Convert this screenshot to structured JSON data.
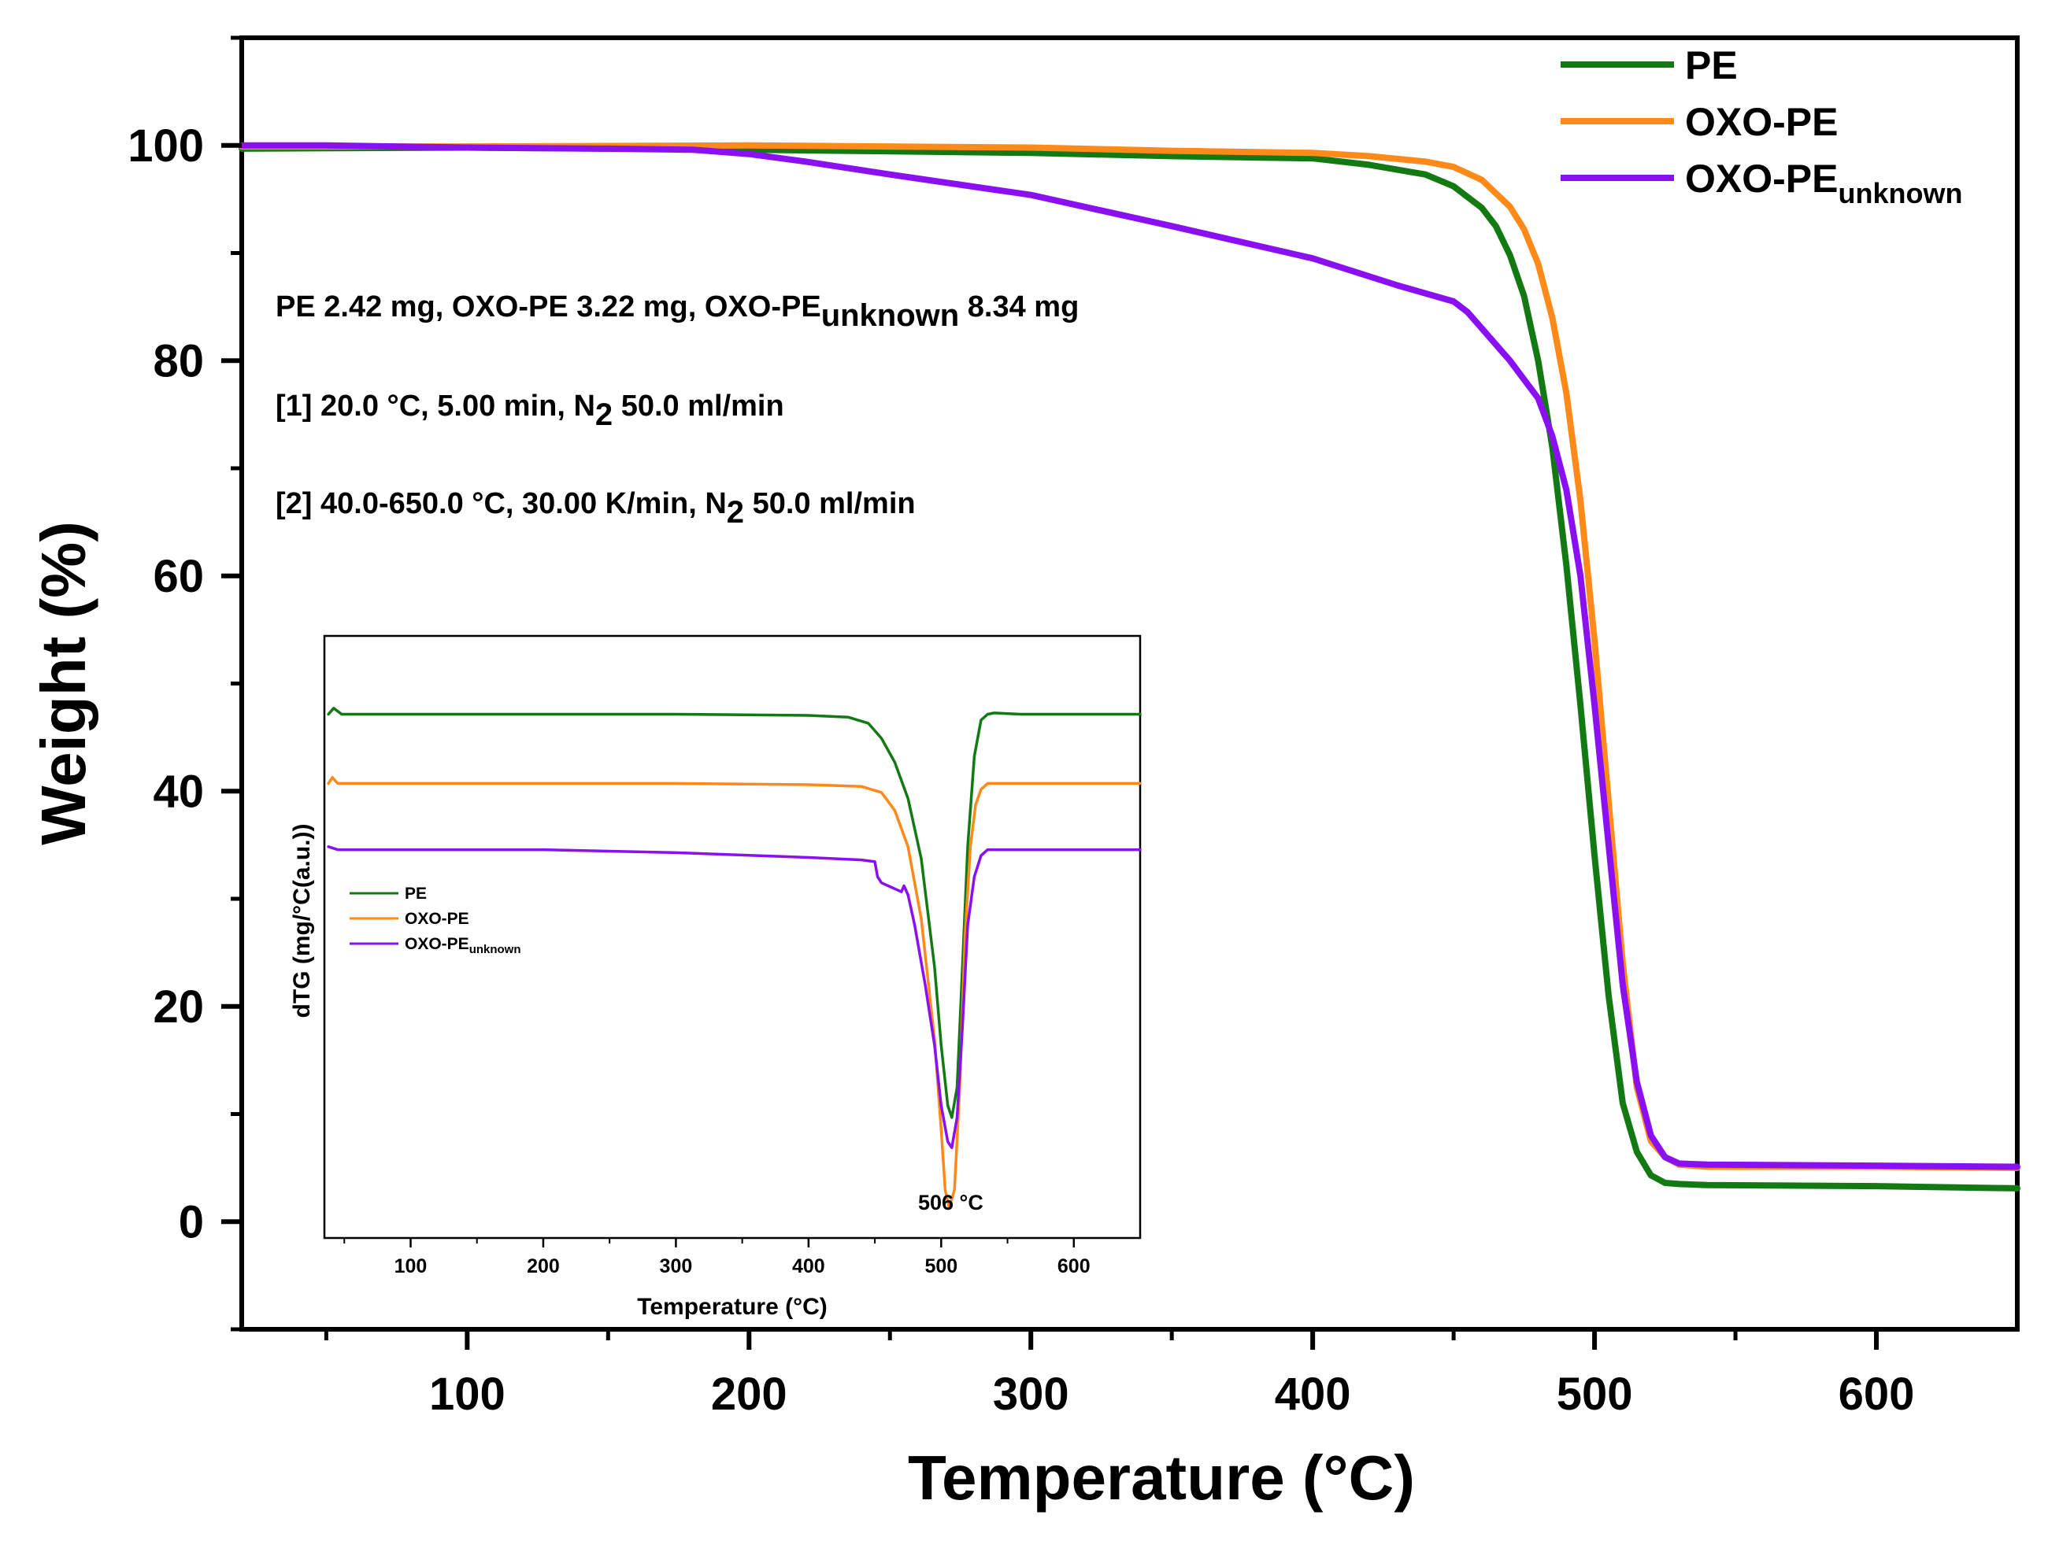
{
  "colors": {
    "PE": "#137a13",
    "OXO-PE": "#ff8a1a",
    "OXO-PE_unknown": "#8a10f2",
    "axis": "#000000"
  },
  "chart_data": [
    {
      "type": "line",
      "title": "",
      "xlabel": "Temperature (°C)",
      "ylabel": "Weight (%)",
      "xlim": [
        20,
        650
      ],
      "ylim": [
        -10,
        110
      ],
      "x_ticks": [
        100,
        200,
        300,
        400,
        500,
        600
      ],
      "x_tick_labels": [
        "100",
        "200",
        "300",
        "400",
        "500",
        "600"
      ],
      "y_ticks": [
        0,
        20,
        40,
        60,
        80,
        100
      ],
      "y_tick_labels": [
        "0",
        "20",
        "40",
        "60",
        "80",
        "100"
      ],
      "legend": {
        "position": "top-right",
        "entries": [
          {
            "base": "PE",
            "sub": ""
          },
          {
            "base": "OXO-PE",
            "sub": ""
          },
          {
            "base": "OXO-PE",
            "sub": "unknown"
          }
        ]
      },
      "annotations": [
        {
          "segments": [
            {
              "t": "PE 2.42 mg, OXO-PE 3.22 mg, OXO-PE"
            },
            {
              "t": "unknown",
              "sub": true
            },
            {
              "t": " 8.34 mg"
            }
          ]
        },
        {
          "segments": [
            {
              "t": "[1] 20.0 °C, 5.00 min, N"
            },
            {
              "t": "2",
              "sub": true
            },
            {
              "t": " 50.0 ml/min"
            }
          ]
        },
        {
          "segments": [
            {
              "t": "[2] 40.0-650.0 °C, 30.00 K/min, N"
            },
            {
              "t": "2",
              "sub": true
            },
            {
              "t": " 50.0 ml/min"
            }
          ]
        }
      ],
      "series": [
        {
          "name": "PE",
          "color_key": "PE",
          "x": [
            20,
            100,
            200,
            300,
            350,
            400,
            420,
            440,
            450,
            460,
            465,
            470,
            475,
            480,
            485,
            490,
            495,
            500,
            505,
            510,
            515,
            520,
            525,
            530,
            540,
            600,
            650
          ],
          "y": [
            99.7,
            99.8,
            99.6,
            99.3,
            99.0,
            98.8,
            98.2,
            97.3,
            96.2,
            94.2,
            92.5,
            89.8,
            86.0,
            80.0,
            72.0,
            61.0,
            48.0,
            34.0,
            21.0,
            11.0,
            6.5,
            4.3,
            3.6,
            3.5,
            3.4,
            3.3,
            3.1
          ]
        },
        {
          "name": "OXO-PE",
          "color_key": "OXO-PE",
          "x": [
            20,
            100,
            200,
            300,
            350,
            400,
            420,
            440,
            450,
            460,
            470,
            475,
            480,
            485,
            490,
            495,
            500,
            505,
            510,
            515,
            520,
            525,
            530,
            540,
            600,
            650
          ],
          "y": [
            99.9,
            99.9,
            100.0,
            99.8,
            99.5,
            99.3,
            99.0,
            98.5,
            98.0,
            96.8,
            94.3,
            92.2,
            89.0,
            84.0,
            77.0,
            67.0,
            54.0,
            39.0,
            24.0,
            12.5,
            7.5,
            6.0,
            5.3,
            5.1,
            5.1,
            5.0
          ]
        },
        {
          "name": "OXO-PE_unknown",
          "color_key": "OXO-PE_unknown",
          "x": [
            20,
            50,
            100,
            150,
            180,
            200,
            220,
            250,
            300,
            350,
            400,
            430,
            450,
            455,
            460,
            470,
            480,
            485,
            490,
            495,
            500,
            505,
            510,
            515,
            520,
            525,
            530,
            540,
            600,
            650
          ],
          "y": [
            100.0,
            100.0,
            99.8,
            99.7,
            99.6,
            99.2,
            98.5,
            97.3,
            95.4,
            92.5,
            89.5,
            87.0,
            85.5,
            84.5,
            83.0,
            80.0,
            76.5,
            73.0,
            68.0,
            60.0,
            48.0,
            35.0,
            22.0,
            13.0,
            8.0,
            6.0,
            5.4,
            5.3,
            5.2,
            5.1
          ]
        }
      ]
    },
    {
      "type": "line",
      "title": "",
      "xlabel": "Temperature (°C)",
      "ylabel": "dTG (mg/°C(a.u.))",
      "xlim": [
        35,
        650
      ],
      "ylim": [
        0,
        100
      ],
      "x_ticks": [
        100,
        200,
        300,
        400,
        500,
        600
      ],
      "x_tick_labels": [
        "100",
        "200",
        "300",
        "400",
        "500",
        "600"
      ],
      "peak_label": {
        "text": "506 °C",
        "x": 506
      },
      "legend": {
        "position": "middle-left",
        "entries": [
          {
            "base": "PE",
            "sub": ""
          },
          {
            "base": "OXO-PE",
            "sub": ""
          },
          {
            "base": "OXO-PE",
            "sub": "unknown"
          }
        ]
      },
      "series": [
        {
          "name": "PE",
          "color_key": "PE",
          "x": [
            38,
            42,
            48,
            100,
            200,
            300,
            400,
            430,
            445,
            455,
            465,
            475,
            485,
            495,
            500,
            505,
            508,
            512,
            516,
            520,
            525,
            530,
            535,
            540,
            560,
            650
          ],
          "y": [
            87.0,
            88.0,
            87.0,
            87.0,
            87.0,
            87.0,
            86.8,
            86.5,
            85.5,
            83.0,
            79.0,
            73.0,
            63.0,
            45.0,
            32.0,
            22.0,
            20.0,
            25.0,
            45.0,
            65.0,
            80.0,
            86.0,
            87.0,
            87.2,
            87.0,
            87.0
          ]
        },
        {
          "name": "OXO-PE",
          "color_key": "OXO-PE",
          "x": [
            38,
            41,
            45,
            100,
            200,
            300,
            400,
            440,
            455,
            465,
            475,
            485,
            495,
            500,
            503,
            506,
            510,
            514,
            518,
            522,
            526,
            530,
            535,
            545,
            650
          ],
          "y": [
            75.5,
            76.5,
            75.5,
            75.5,
            75.5,
            75.5,
            75.3,
            75.0,
            74.0,
            71.0,
            65.0,
            53.0,
            33.0,
            18.0,
            8.0,
            5.0,
            8.0,
            25.0,
            50.0,
            65.0,
            72.0,
            74.5,
            75.5,
            75.5,
            75.5
          ]
        },
        {
          "name": "OXO-PE_unknown",
          "color_key": "OXO-PE_unknown",
          "x": [
            38,
            45,
            100,
            200,
            300,
            400,
            440,
            450,
            452,
            455,
            460,
            465,
            470,
            472,
            475,
            480,
            488,
            495,
            500,
            505,
            508,
            512,
            516,
            520,
            525,
            530,
            535,
            540,
            650
          ],
          "y": [
            65.0,
            64.5,
            64.5,
            64.5,
            64.0,
            63.2,
            62.8,
            62.5,
            60.0,
            59.0,
            58.5,
            58.0,
            57.5,
            58.5,
            57.0,
            52.0,
            42.0,
            32.0,
            22.0,
            16.0,
            15.0,
            20.0,
            35.0,
            52.0,
            60.0,
            63.5,
            64.5,
            64.5,
            64.5
          ]
        }
      ]
    }
  ]
}
